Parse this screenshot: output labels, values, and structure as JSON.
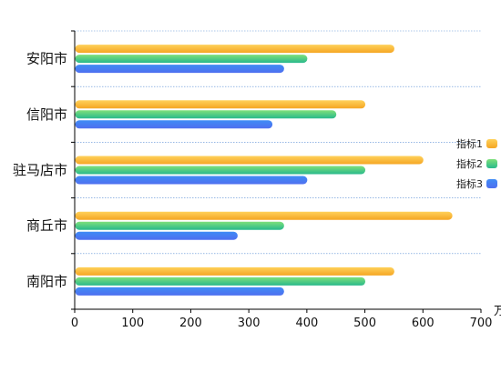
{
  "chart_data": {
    "type": "bar",
    "orientation": "horizontal",
    "categories": [
      "安阳市",
      "信阳市",
      "驻马店市",
      "商丘市",
      "南阳市"
    ],
    "series": [
      {
        "name": "指标1",
        "values": [
          550,
          500,
          600,
          650,
          550
        ],
        "color": "#f5a623",
        "color_light": "#ffd15a"
      },
      {
        "name": "指标2",
        "values": [
          400,
          450,
          500,
          360,
          500
        ],
        "color": "#28b98c",
        "color_light": "#7fe07a"
      },
      {
        "name": "指标3",
        "values": [
          360,
          340,
          400,
          280,
          360
        ],
        "color": "#4f6ff0",
        "color_light": "#3f8cf5"
      }
    ],
    "x_ticks": [
      0,
      100,
      200,
      300,
      400,
      500,
      600,
      700
    ],
    "xlim": [
      0,
      700
    ],
    "x_unit": "万",
    "grid": {
      "horizontal_dotted": true
    },
    "legend_position": "right"
  }
}
